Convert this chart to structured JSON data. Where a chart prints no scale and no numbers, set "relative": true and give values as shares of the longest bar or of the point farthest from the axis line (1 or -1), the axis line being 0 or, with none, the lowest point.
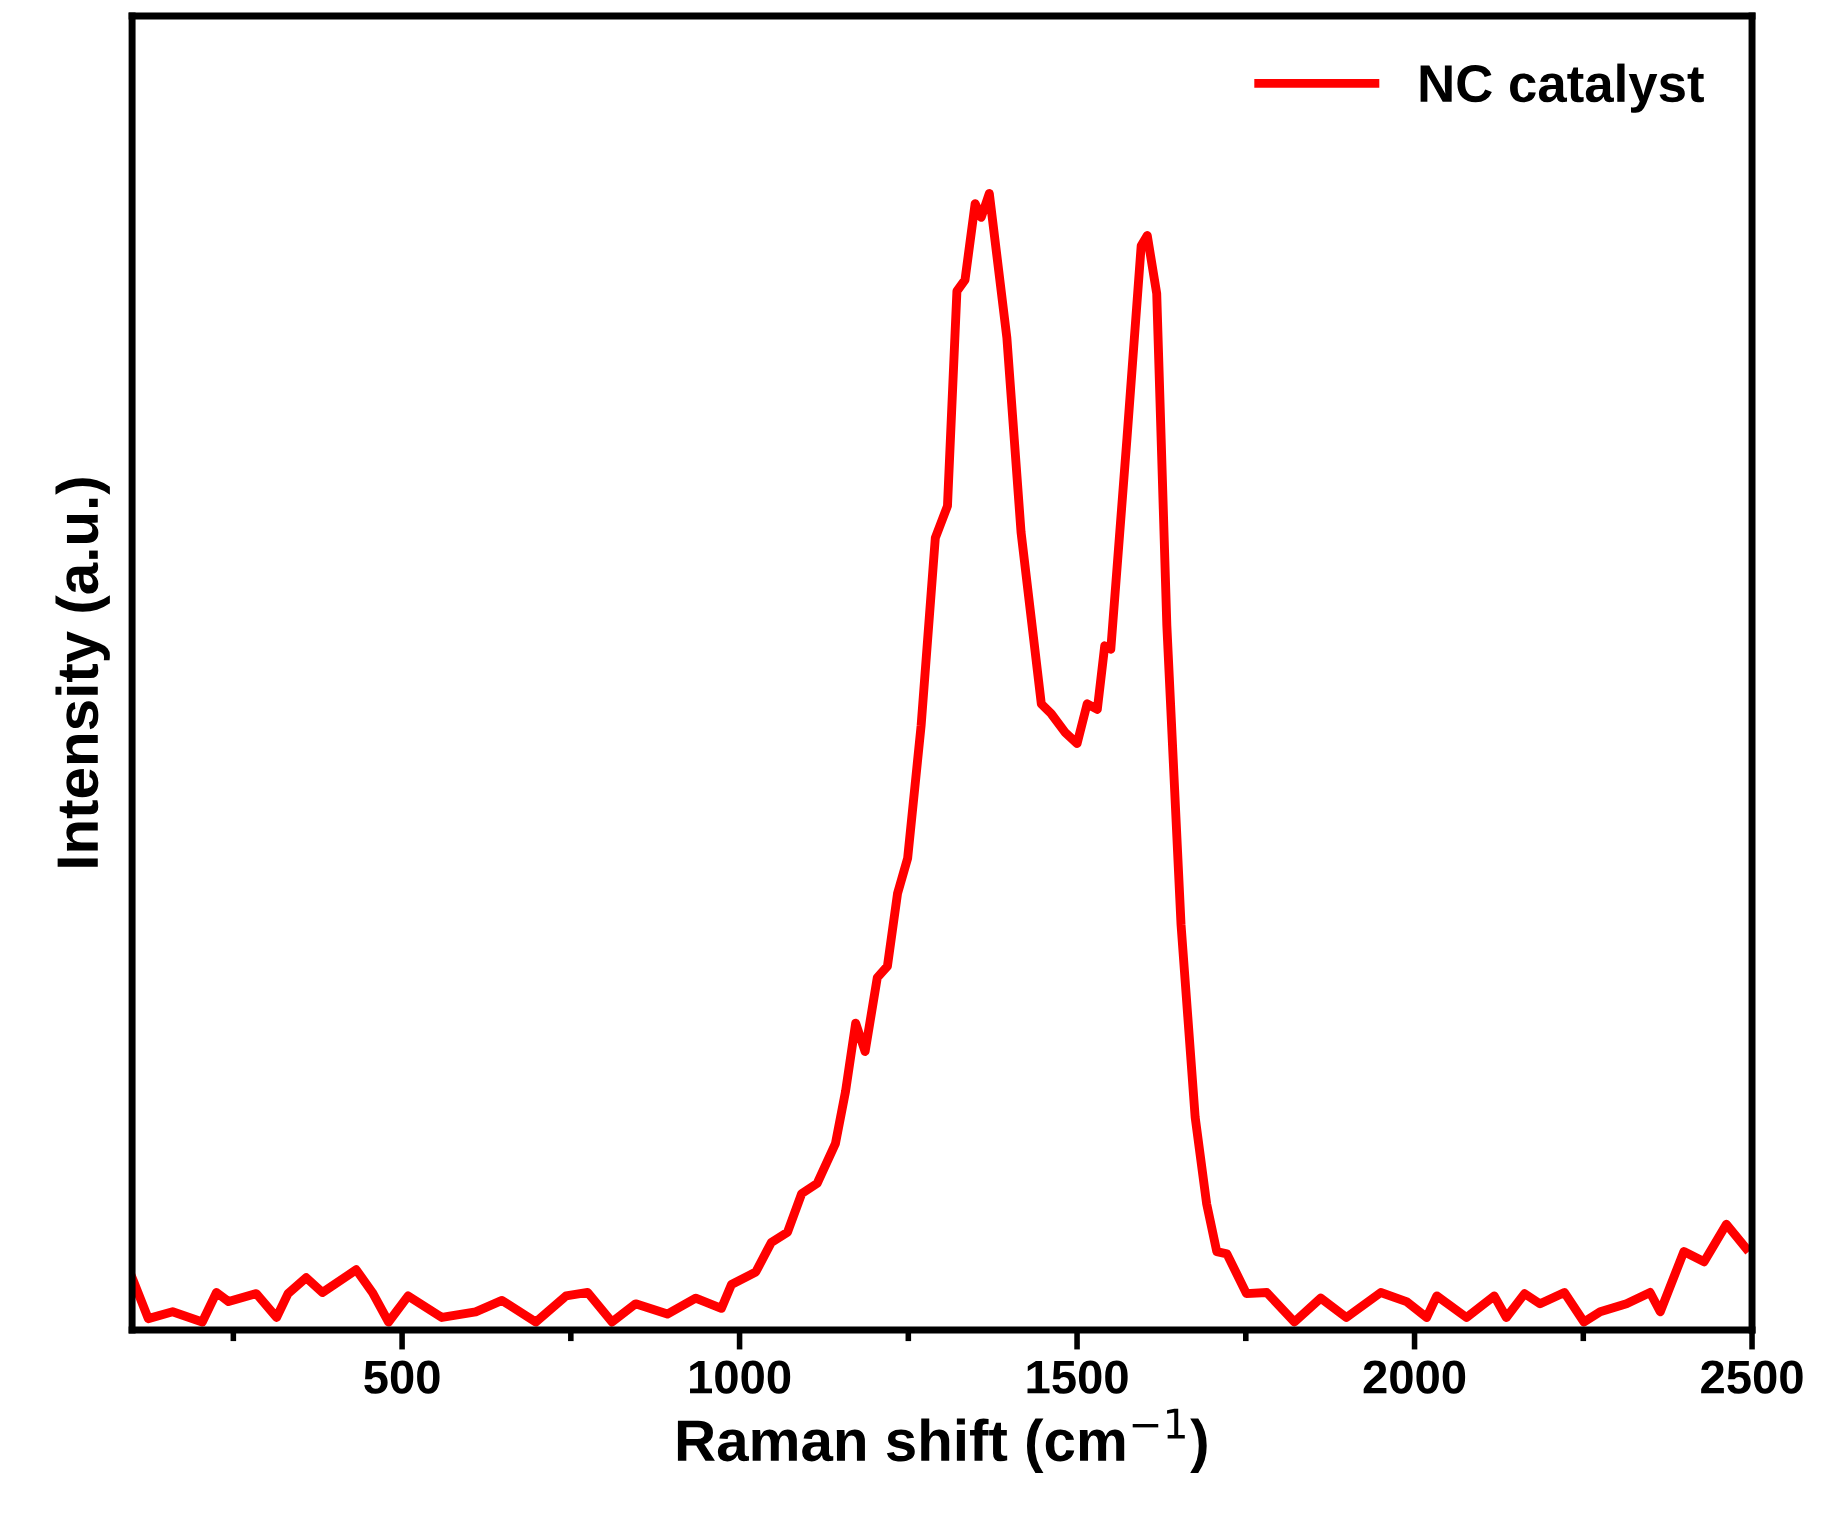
{
  "chart_data": {
    "type": "line",
    "xlabel": "Raman shift (cm$^{−1}$)",
    "ylabel": "Intensity (a.u.)",
    "relative": true,
    "legend": "top right",
    "grid": false,
    "marker": "none",
    "line_style": "solid",
    "xlim": [
      100,
      2500
    ],
    "xticks": [
      {
        "value": 250,
        "label": null
      },
      500,
      {
        "value": 750,
        "label": null
      },
      1000,
      {
        "value": 1250,
        "label": null
      },
      1500,
      {
        "value": 1750,
        "label": null
      },
      2000,
      {
        "value": 2250,
        "label": null
      },
      2500
    ],
    "series": [
      {
        "name": "NC catalyst",
        "color": "#ff0000",
        "x": [
          100,
          124,
          160,
          204,
          225,
          243,
          284,
          314,
          331,
          358,
          382,
          432,
          456,
          480,
          509,
          559,
          609,
          648,
          698,
          743,
          775,
          811,
          846,
          893,
          935,
          973,
          988,
          1024,
          1047,
          1071,
          1092,
          1115,
          1142,
          1157,
          1172,
          1186,
          1204,
          1219,
          1234,
          1249,
          1269,
          1290,
          1308,
          1322,
          1334,
          1349,
          1358,
          1370,
          1396,
          1417,
          1447,
          1462,
          1482,
          1500,
          1515,
          1530,
          1541,
          1550,
          1574,
          1595,
          1604,
          1618,
          1633,
          1654,
          1675,
          1692,
          1707,
          1722,
          1751,
          1781,
          1822,
          1861,
          1899,
          1950,
          1988,
          2018,
          2033,
          2077,
          2118,
          2136,
          2163,
          2186,
          2222,
          2251,
          2275,
          2314,
          2349,
          2364,
          2399,
          2429,
          2462,
          2491
        ],
        "values": [
          0.046,
          0.01,
          0.016,
          0.007,
          0.033,
          0.025,
          0.032,
          0.011,
          0.032,
          0.046,
          0.033,
          0.053,
          0.033,
          0.007,
          0.03,
          0.011,
          0.016,
          0.026,
          0.007,
          0.03,
          0.033,
          0.007,
          0.023,
          0.014,
          0.028,
          0.019,
          0.04,
          0.051,
          0.077,
          0.086,
          0.12,
          0.129,
          0.164,
          0.21,
          0.27,
          0.245,
          0.31,
          0.32,
          0.384,
          0.415,
          0.532,
          0.697,
          0.725,
          0.914,
          0.924,
          0.991,
          0.979,
          1.0,
          0.873,
          0.702,
          0.551,
          0.542,
          0.526,
          0.516,
          0.551,
          0.546,
          0.602,
          0.599,
          0.785,
          0.954,
          0.963,
          0.912,
          0.62,
          0.357,
          0.187,
          0.111,
          0.069,
          0.067,
          0.032,
          0.033,
          0.007,
          0.028,
          0.011,
          0.033,
          0.025,
          0.011,
          0.03,
          0.011,
          0.03,
          0.011,
          0.032,
          0.023,
          0.033,
          0.007,
          0.016,
          0.023,
          0.033,
          0.016,
          0.069,
          0.06,
          0.093,
          0.072
        ]
      }
    ]
  }
}
